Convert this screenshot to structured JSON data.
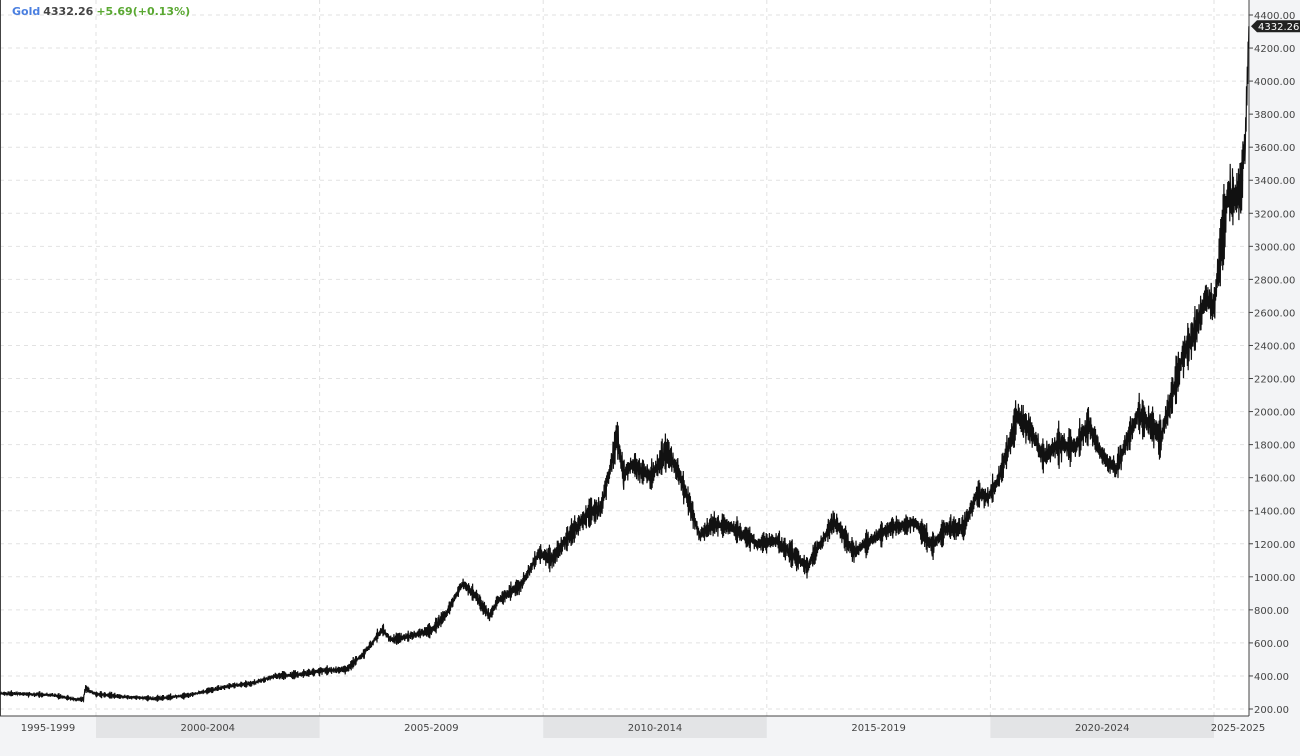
{
  "header": {
    "symbol": "Gold",
    "price": "4332.26",
    "change": "+5.69(+0.13%)"
  },
  "colors": {
    "symbol": "#4a7fe0",
    "change": "#5aa832",
    "line": "#111111",
    "grid": "#e2e2e2"
  },
  "chart_data": {
    "type": "line",
    "title": "",
    "xlabel": "",
    "ylabel": "",
    "grid": true,
    "y_axis_side": "right",
    "ylim": [
      160,
      4420
    ],
    "xlim": [
      1997.85,
      2025.78
    ],
    "y_ticks": [
      "4400.00",
      "4200.00",
      "4000.00",
      "3800.00",
      "3600.00",
      "3400.00",
      "3200.00",
      "3000.00",
      "2800.00",
      "2600.00",
      "2400.00",
      "2200.00",
      "2000.00",
      "1800.00",
      "1600.00",
      "1400.00",
      "1200.00",
      "1000.00",
      "800.00",
      "600.00",
      "400.00",
      "200.00"
    ],
    "x_periods": [
      {
        "label": "1995-1999",
        "start": 1995,
        "end": 2000
      },
      {
        "label": "2000-2004",
        "start": 2000,
        "end": 2005
      },
      {
        "label": "2005-2009",
        "start": 2005,
        "end": 2010
      },
      {
        "label": "2010-2014",
        "start": 2010,
        "end": 2015
      },
      {
        "label": "2015-2019",
        "start": 2015,
        "end": 2020
      },
      {
        "label": "2020-2024",
        "start": 2020,
        "end": 2025
      },
      {
        "label": "2025-2025",
        "start": 2025,
        "end": 2030
      }
    ],
    "last_price_label": "4332.26",
    "series": [
      {
        "x": [
          1997.85,
          1998.5,
          1999.0,
          1999.55,
          1999.72,
          1999.76,
          2000.0,
          2000.6,
          2001.3,
          2002.0,
          2002.5,
          2003.0,
          2003.5,
          2004.0,
          2004.6,
          2005.0,
          2005.6,
          2006.0,
          2006.4,
          2006.6,
          2007.0,
          2007.5,
          2007.8,
          2008.2,
          2008.5,
          2008.8,
          2009.0,
          2009.5,
          2009.9,
          2010.2,
          2010.5,
          2011.0,
          2011.3,
          2011.65,
          2011.8,
          2012.0,
          2012.4,
          2012.75,
          2013.0,
          2013.3,
          2013.5,
          2013.8,
          2014.2,
          2014.8,
          2015.2,
          2015.9,
          2016.5,
          2016.95,
          2017.5,
          2017.8,
          2018.3,
          2018.7,
          2019.0,
          2019.4,
          2019.7,
          2019.95,
          2020.2,
          2020.6,
          2020.9,
          2021.2,
          2021.5,
          2021.9,
          2022.2,
          2022.5,
          2022.8,
          2023.3,
          2023.6,
          2023.8,
          2024.0,
          2024.3,
          2024.6,
          2024.8,
          2025.0,
          2025.3,
          2025.45,
          2025.6,
          2025.7,
          2025.78
        ],
        "y": [
          295,
          290,
          285,
          258,
          262,
          325,
          290,
          275,
          262,
          280,
          310,
          340,
          355,
          400,
          410,
          430,
          440,
          540,
          680,
          620,
          640,
          680,
          760,
          960,
          880,
          760,
          860,
          950,
          1140,
          1110,
          1220,
          1380,
          1420,
          1850,
          1620,
          1680,
          1600,
          1760,
          1650,
          1420,
          1250,
          1320,
          1300,
          1200,
          1220,
          1060,
          1340,
          1150,
          1250,
          1300,
          1330,
          1190,
          1290,
          1300,
          1500,
          1480,
          1600,
          1970,
          1880,
          1720,
          1800,
          1790,
          1920,
          1730,
          1650,
          1990,
          1920,
          1830,
          2040,
          2330,
          2500,
          2680,
          2640,
          3300,
          3300,
          3350,
          3650,
          4332.26
        ]
      }
    ]
  }
}
